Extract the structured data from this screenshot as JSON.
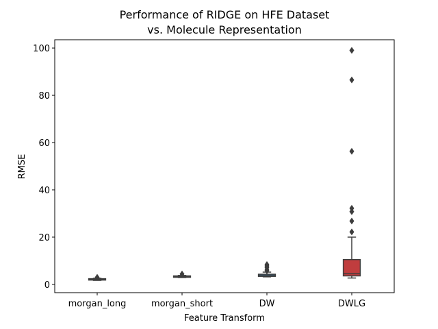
{
  "chart_data": {
    "type": "box",
    "title_lines": [
      "Performance of RIDGE on HFE Dataset",
      "vs. Molecule Representation"
    ],
    "xlabel": "Feature Transform",
    "ylabel": "RMSE",
    "ylim": [
      -3.5,
      103.5
    ],
    "yticks": [
      0,
      20,
      40,
      60,
      80,
      100
    ],
    "categories": [
      "morgan_long",
      "morgan_short",
      "DW",
      "DWLG"
    ],
    "boxes": [
      {
        "category": "morgan_long",
        "q1": 1.9,
        "median": 2.1,
        "q3": 2.35,
        "whisker_low": 1.7,
        "whisker_high": 2.6,
        "outliers": [
          3.0
        ],
        "color": "#3a923a"
      },
      {
        "category": "morgan_short",
        "q1": 3.0,
        "median": 3.3,
        "q3": 3.6,
        "whisker_low": 2.9,
        "whisker_high": 3.8,
        "outliers": [
          4.4
        ],
        "color": "#e1812c"
      },
      {
        "category": "DW",
        "q1": 3.4,
        "median": 3.7,
        "q3": 4.3,
        "whisker_low": 3.2,
        "whisker_high": 5.2,
        "outliers": [
          5.8,
          6.4,
          7.2,
          7.8,
          8.4
        ],
        "color": "#3274a1"
      },
      {
        "category": "DWLG",
        "q1": 3.6,
        "median": 4.5,
        "q3": 10.5,
        "whisker_low": 2.7,
        "whisker_high": 20.0,
        "outliers": [
          22.2,
          26.8,
          30.8,
          32.2,
          56.3,
          86.5,
          99.0
        ],
        "color": "#c03d3e"
      }
    ]
  }
}
